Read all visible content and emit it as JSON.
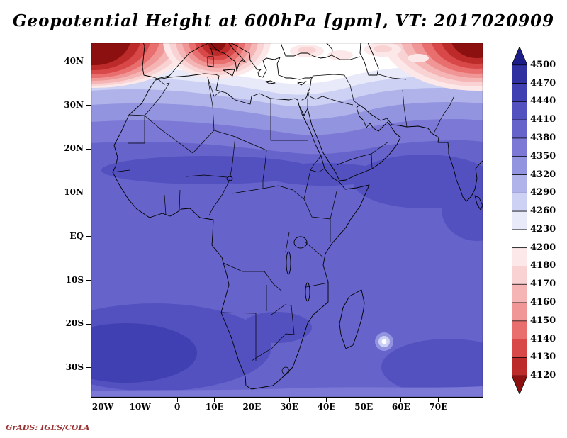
{
  "title": "Geopotential Height at 600hPa [gpm], VT: 2017020909",
  "credit": "GrADS: IGES/COLA",
  "chart_data": {
    "type": "heatmap",
    "subtype": "filled_contour_map",
    "title": "Geopotential Height at 600hPa [gpm], VT: 2017020909",
    "variable": "geopotential height",
    "level": "600hPa",
    "units": "gpm",
    "valid_time": "2017020909",
    "projection": "latlon",
    "region": "Africa / Mediterranean / Arabia / western Indian Ocean",
    "lon_range": [
      -23,
      82
    ],
    "lat_range": [
      -37,
      45
    ],
    "grid": "off",
    "legend_position": "right",
    "x_ticks": [
      {
        "label": "20W",
        "deg": -20
      },
      {
        "label": "10W",
        "deg": -10
      },
      {
        "label": "0",
        "deg": 0
      },
      {
        "label": "10E",
        "deg": 10
      },
      {
        "label": "20E",
        "deg": 20
      },
      {
        "label": "30E",
        "deg": 30
      },
      {
        "label": "40E",
        "deg": 40
      },
      {
        "label": "50E",
        "deg": 50
      },
      {
        "label": "60E",
        "deg": 60
      },
      {
        "label": "70E",
        "deg": 70
      }
    ],
    "y_ticks": [
      {
        "label": "40N",
        "deg": 40
      },
      {
        "label": "30N",
        "deg": 30
      },
      {
        "label": "20N",
        "deg": 20
      },
      {
        "label": "10N",
        "deg": 10
      },
      {
        "label": "EQ",
        "deg": 0
      },
      {
        "label": "10S",
        "deg": -10
      },
      {
        "label": "20S",
        "deg": -20
      },
      {
        "label": "30S",
        "deg": -30
      }
    ],
    "contour_levels": [
      4120,
      4130,
      4140,
      4150,
      4160,
      4170,
      4180,
      4200,
      4230,
      4260,
      4290,
      4320,
      4350,
      4380,
      4410,
      4440,
      4470,
      4500
    ],
    "colorbar": {
      "orientation": "vertical",
      "position": "right",
      "labels_top_to_bottom": [
        4500,
        4470,
        4440,
        4410,
        4380,
        4350,
        4320,
        4290,
        4260,
        4230,
        4200,
        4180,
        4170,
        4160,
        4150,
        4140,
        4130,
        4120
      ],
      "colors_top_to_bottom": [
        "#1d1d8a",
        "#3030a1",
        "#4140b2",
        "#5351c0",
        "#6663cb",
        "#7b78d6",
        "#9394df",
        "#b0b3ea",
        "#cdd1f3",
        "#e8eaf9",
        "#ffffff",
        "#fce8e8",
        "#f9d3d3",
        "#f5b5b5",
        "#f09696",
        "#e96f6f",
        "#d94848",
        "#bc2a2a",
        "#8c1010"
      ]
    },
    "field_summary": [
      "Low heights (below 4200 gpm, red) along the northern edge: centers near 20W 45N (North Atlantic), 10E 44N (central Mediterranean), and 75E 44N (southwest Asia)",
      "White band (4200-4260 gpm) across about 33-38N from Iberia through Turkey",
      "Heights rise southward to 4380-4410 gpm over most of tropical Africa and the Indian Ocean",
      "Slightly higher band 4410-4440 gpm along the Sahel near 15N and over the Arabian Sea",
      "Higher cell 4410-4470 gpm over the South Atlantic near 25S 0E",
      "Small concentric minimum (tropical cyclone signature) near 55E 24S east of Madagascar",
      "Lighter band 4350-4380 gpm along the southern edge near 35S"
    ]
  }
}
